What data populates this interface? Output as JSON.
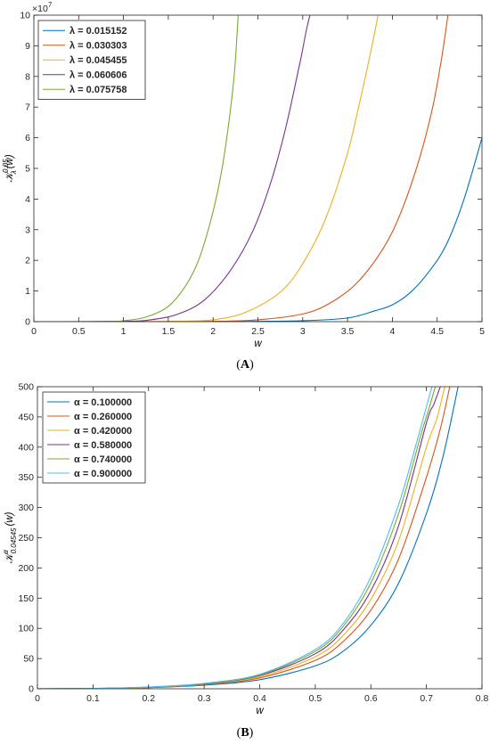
{
  "panels": [
    {
      "caption_open": "(",
      "caption_label": "A",
      "caption_close": ")"
    },
    {
      "caption_open": "(",
      "caption_label": "B",
      "caption_close": ")"
    }
  ],
  "chart_data": [
    {
      "type": "line",
      "panel": "A",
      "xlabel": "w",
      "ylabel": "K_λ^{0.05}(w)",
      "y_multiplier": "×10^7",
      "xlim": [
        0,
        5
      ],
      "ylim": [
        0,
        10
      ],
      "xticks": [
        0,
        0.5,
        1,
        1.5,
        2,
        2.5,
        3,
        3.5,
        4,
        4.5,
        5
      ],
      "yticks": [
        0,
        1,
        2,
        3,
        4,
        5,
        6,
        7,
        8,
        9,
        10
      ],
      "grid": false,
      "legend_position": "top-left",
      "series": [
        {
          "name": "λ = 0.015152",
          "color": "#0072BD",
          "x": [
            0,
            1.0,
            2.0,
            2.5,
            3.0,
            3.5,
            3.8,
            4.0,
            4.2,
            4.4,
            4.6,
            4.8,
            5.0
          ],
          "values": [
            0,
            0,
            0,
            0.01,
            0.03,
            0.12,
            0.35,
            0.55,
            0.95,
            1.6,
            2.5,
            4.0,
            6.0
          ]
        },
        {
          "name": "λ = 0.030303",
          "color": "#D95319",
          "x": [
            0,
            1.0,
            2.0,
            2.5,
            3.0,
            3.3,
            3.6,
            3.9,
            4.1,
            4.3,
            4.45,
            4.55,
            4.62
          ],
          "values": [
            0,
            0,
            0.01,
            0.06,
            0.25,
            0.6,
            1.25,
            2.4,
            3.6,
            5.3,
            7.0,
            8.6,
            10.0
          ]
        },
        {
          "name": "λ = 0.045455",
          "color": "#EDB120",
          "x": [
            0,
            1.0,
            1.5,
            2.0,
            2.4,
            2.8,
            3.1,
            3.3,
            3.5,
            3.6,
            3.7,
            3.78,
            3.84
          ],
          "values": [
            0,
            0,
            0.01,
            0.06,
            0.35,
            1.1,
            2.4,
            3.7,
            5.5,
            6.7,
            8.0,
            9.1,
            10.0
          ]
        },
        {
          "name": "λ = 0.060606",
          "color": "#7E2F8E",
          "x": [
            0,
            1.0,
            1.3,
            1.6,
            1.9,
            2.2,
            2.45,
            2.65,
            2.8,
            2.9,
            2.98,
            3.04,
            3.08
          ],
          "values": [
            0,
            0.01,
            0.06,
            0.24,
            0.7,
            1.7,
            3.0,
            4.6,
            6.2,
            7.5,
            8.6,
            9.5,
            10.0
          ]
        },
        {
          "name": "λ = 0.075758",
          "color": "#77AC30",
          "x": [
            0,
            0.8,
            1.0,
            1.25,
            1.5,
            1.7,
            1.85,
            2.0,
            2.1,
            2.18,
            2.24,
            2.28
          ],
          "values": [
            0,
            0,
            0.03,
            0.15,
            0.5,
            1.2,
            2.1,
            3.6,
            5.0,
            6.6,
            8.2,
            10.0
          ]
        }
      ]
    },
    {
      "type": "line",
      "panel": "B",
      "xlabel": "w",
      "ylabel": "K_{0.04545}^α(w)",
      "xlim": [
        0,
        0.8
      ],
      "ylim": [
        0,
        500
      ],
      "xticks": [
        0,
        0.1,
        0.2,
        0.3,
        0.4,
        0.5,
        0.6,
        0.7,
        0.8
      ],
      "yticks": [
        0,
        50,
        100,
        150,
        200,
        250,
        300,
        350,
        400,
        450,
        500
      ],
      "grid": false,
      "legend_position": "top-left",
      "series": [
        {
          "name": "α = 0.100000",
          "color": "#0072BD",
          "x": [
            0,
            0.1,
            0.2,
            0.3,
            0.4,
            0.5,
            0.55,
            0.6,
            0.65,
            0.7,
            0.73,
            0.757
          ],
          "values": [
            0,
            0.5,
            2,
            6,
            15,
            38,
            62,
            105,
            175,
            290,
            385,
            500
          ]
        },
        {
          "name": "α = 0.260000",
          "color": "#D95319",
          "x": [
            0,
            0.1,
            0.2,
            0.3,
            0.4,
            0.5,
            0.55,
            0.6,
            0.65,
            0.7,
            0.725,
            0.742
          ],
          "values": [
            0,
            0.5,
            2,
            7,
            18,
            47,
            78,
            130,
            215,
            350,
            430,
            500
          ]
        },
        {
          "name": "α = 0.420000",
          "color": "#EDB120",
          "x": [
            0,
            0.1,
            0.2,
            0.3,
            0.4,
            0.5,
            0.55,
            0.6,
            0.65,
            0.7,
            0.718,
            0.733
          ],
          "values": [
            0,
            0.5,
            2.5,
            7.5,
            20,
            53,
            88,
            148,
            245,
            400,
            445,
            500
          ]
        },
        {
          "name": "α = 0.580000",
          "color": "#7E2F8E",
          "x": [
            0,
            0.1,
            0.2,
            0.3,
            0.4,
            0.5,
            0.55,
            0.6,
            0.65,
            0.7,
            0.713,
            0.725
          ],
          "values": [
            0,
            0.5,
            2.5,
            8,
            22,
            58,
            97,
            162,
            270,
            440,
            470,
            500
          ]
        },
        {
          "name": "α = 0.740000",
          "color": "#77AC30",
          "x": [
            0,
            0.1,
            0.2,
            0.3,
            0.4,
            0.5,
            0.55,
            0.6,
            0.65,
            0.69,
            0.705,
            0.716
          ],
          "values": [
            0,
            0.5,
            2.5,
            8.5,
            23,
            62,
            103,
            175,
            290,
            420,
            465,
            500
          ]
        },
        {
          "name": "α = 0.900000",
          "color": "#4DBEEE",
          "x": [
            0,
            0.1,
            0.2,
            0.3,
            0.4,
            0.5,
            0.55,
            0.6,
            0.65,
            0.68,
            0.698,
            0.71
          ],
          "values": [
            0,
            0.5,
            3,
            9,
            24,
            65,
            108,
            185,
            305,
            400,
            460,
            500
          ]
        }
      ]
    }
  ]
}
